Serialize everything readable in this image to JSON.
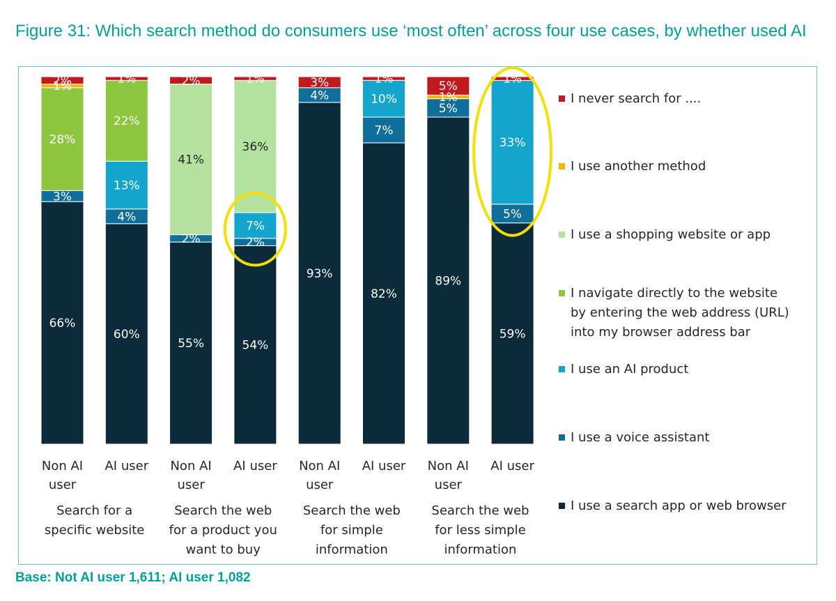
{
  "figure": {
    "title": "Figure 31: Which search method do consumers use ‘most often’ across four use cases, by whether used AI",
    "base_note": "Base: Not AI user 1,611; AI user 1,082"
  },
  "chart_data": {
    "type": "bar",
    "stacked": true,
    "ylim": [
      0,
      100
    ],
    "grid": false,
    "legend_position": "right",
    "groups": [
      "Search for a specific website",
      "Search the web for a product you want to buy",
      "Search the web for simple information",
      "Search the web for less simple information"
    ],
    "categories": [
      "Non AI user",
      "AI user",
      "Non AI user",
      "AI user",
      "Non AI user",
      "AI user",
      "Non AI user",
      "AI user"
    ],
    "series": [
      {
        "name": "I use a search app or web browser",
        "color": "#0b2a3a",
        "values": [
          66,
          60,
          55,
          54,
          93,
          82,
          89,
          59
        ],
        "labels": [
          "66%",
          "60%",
          "55%",
          "54%",
          "93%",
          "82%",
          "89%",
          "59%"
        ]
      },
      {
        "name": "I use a voice assistant",
        "color": "#106f9a",
        "values": [
          3,
          4,
          2,
          2,
          4,
          7,
          5,
          5
        ],
        "labels": [
          "3%",
          "4%",
          "2%",
          "2%",
          "4%",
          "7%",
          "5%",
          "5%"
        ]
      },
      {
        "name": "I use an AI product",
        "color": "#13a5cc",
        "values": [
          0,
          13,
          0,
          7,
          0,
          10,
          0,
          33
        ],
        "labels": [
          "",
          "13%",
          "",
          "7%",
          "",
          "10%",
          "",
          "33%"
        ]
      },
      {
        "name": "I navigate directly to the website by entering the web address (URL) into my browser address bar",
        "color": "#8dc63f",
        "values": [
          28,
          22,
          0,
          0,
          0,
          0,
          0,
          0
        ],
        "labels": [
          "28%",
          "22%",
          "",
          "",
          "",
          "",
          "",
          ""
        ]
      },
      {
        "name": "I use a shopping website or app",
        "color": "#b4e3a0",
        "values": [
          0,
          0,
          41,
          36,
          0,
          0,
          0,
          0
        ],
        "labels": [
          "",
          "",
          "41%",
          "36%",
          "",
          "",
          "",
          ""
        ]
      },
      {
        "name": "I use another method",
        "color": "#f5b800",
        "values": [
          1,
          0,
          0,
          0,
          0,
          0,
          1,
          0
        ],
        "labels": [
          "1%",
          "",
          "",
          "",
          "",
          "",
          "1%",
          ""
        ]
      },
      {
        "name": "I never search for ....",
        "color": "#c0191e",
        "values": [
          2,
          1,
          2,
          1,
          3,
          1,
          5,
          1
        ],
        "labels": [
          "2%",
          "1%",
          "2%",
          "1%",
          "3%",
          "1%",
          "5%",
          "1%"
        ]
      }
    ],
    "legend_order": [
      "I never search for ....",
      "I use another method",
      "I use a shopping website or app",
      "I navigate directly to the website by entering the web address (URL) into my browser address bar",
      "I use an AI product",
      "I use a voice assistant",
      "I use a search app or web browser"
    ],
    "annotations": [
      {
        "type": "highlight-ellipse",
        "color": "#f5e000",
        "target": "AI user, Search the web for a product you want to buy: AI product and voice assistant segments"
      },
      {
        "type": "highlight-ellipse",
        "color": "#f5e000",
        "target": "AI user, Search the web for less simple information: AI product and voice assistant segments"
      }
    ]
  }
}
